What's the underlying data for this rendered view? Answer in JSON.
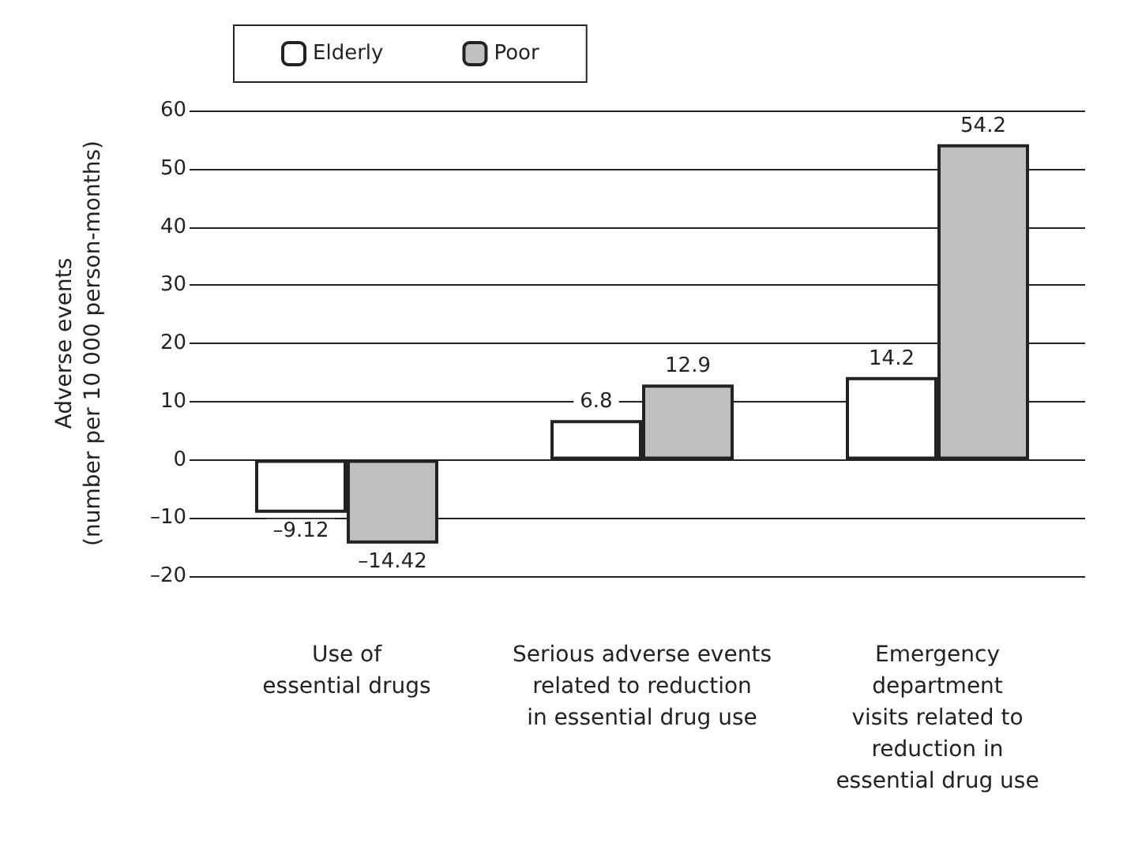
{
  "chart_data": {
    "type": "bar",
    "ylabel": "Adverse events\n(number per 10 000 person-months)",
    "categories": [
      "Use of\nessential drugs",
      "Serious adverse events\nrelated to reduction\nin essential drug use",
      "Emergency\ndepartment\nvisits related to\nreduction in\nessential drug use"
    ],
    "series": [
      {
        "name": "Elderly",
        "color": "#ffffff",
        "values": [
          -9.12,
          6.8,
          14.2
        ],
        "value_labels": [
          "–9.12",
          "6.8",
          "14.2"
        ]
      },
      {
        "name": "Poor",
        "color": "#bfbfbf",
        "values": [
          -14.42,
          12.9,
          54.2
        ],
        "value_labels": [
          "–14.42",
          "12.9",
          "54.2"
        ]
      }
    ],
    "ylim": [
      -20,
      60
    ],
    "yticks": [
      {
        "value": -20,
        "label": "–20"
      },
      {
        "value": -10,
        "label": "–10"
      },
      0,
      10,
      20,
      30,
      40,
      50,
      60
    ],
    "grid": "y",
    "legend": "top"
  }
}
